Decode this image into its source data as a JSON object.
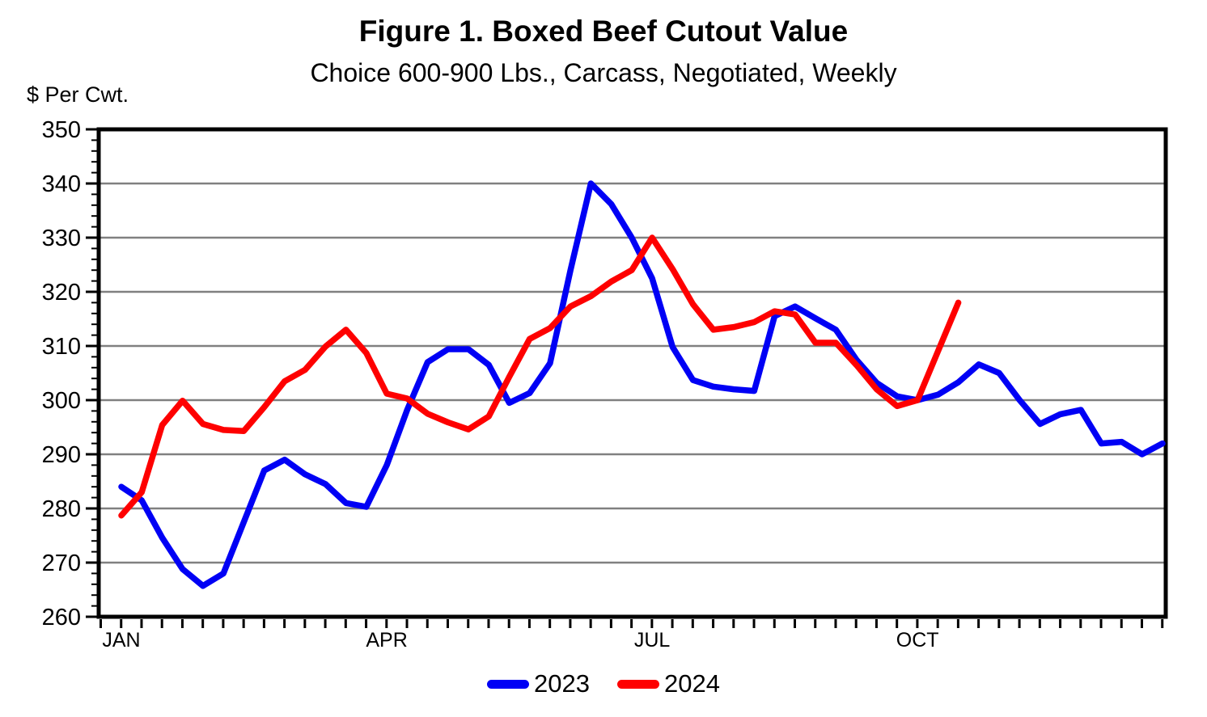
{
  "figure": {
    "title": "Figure 1. Boxed Beef Cutout Value",
    "subtitle": "Choice 600-900 Lbs., Carcass, Negotiated, Weekly",
    "y_axis_unit_label": "$ Per Cwt."
  },
  "colors": {
    "grid": "#808080",
    "axis": "#000000",
    "series_2023": "#0000f5",
    "series_2024": "#fe0000"
  },
  "chart_data": {
    "type": "line",
    "title": "Figure 1. Boxed Beef Cutout Value",
    "subtitle": "Choice 600-900 Lbs., Carcass, Negotiated, Weekly",
    "ylabel": "$ Per Cwt.",
    "x_unit": "week of year",
    "ylim": [
      260,
      350
    ],
    "ytick_step": 10,
    "y_minor_tick_step": 2,
    "weeks_per_year": 52,
    "grid": "horizontal major gridlines only",
    "legend_position": "bottom center",
    "xticklabels": [
      {
        "label": "JAN",
        "week": 1
      },
      {
        "label": "APR",
        "week": 14
      },
      {
        "label": "JUL",
        "week": 27
      },
      {
        "label": "OCT",
        "week": 40
      }
    ],
    "series": [
      {
        "name": "2023",
        "color": "#0000f5",
        "values": [
          284.0,
          281.5,
          274.6,
          268.8,
          265.7,
          268.0,
          277.5,
          287.0,
          289.0,
          286.3,
          284.5,
          281.0,
          280.3,
          288.0,
          298.2,
          307.0,
          309.4,
          309.4,
          306.5,
          299.5,
          301.3,
          306.8,
          324.0,
          340.0,
          336.2,
          330.0,
          322.5,
          309.8,
          303.7,
          302.5,
          302.0,
          301.7,
          315.5,
          317.3,
          315.1,
          313.0,
          307.5,
          303.2,
          300.7,
          300.0,
          301.0,
          303.3,
          306.6,
          305.0,
          300.0,
          295.6,
          297.4,
          298.2,
          292.0,
          292.3,
          290.0,
          292.0
        ]
      },
      {
        "name": "2024",
        "color": "#fe0000",
        "values": [
          278.7,
          283.0,
          295.4,
          299.9,
          295.6,
          294.5,
          294.3,
          298.7,
          303.5,
          305.6,
          309.9,
          313.0,
          308.7,
          301.2,
          300.3,
          297.5,
          295.9,
          294.6,
          297.0,
          304.3,
          311.3,
          313.3,
          317.3,
          319.2,
          321.9,
          324.0,
          330.0,
          324.2,
          317.7,
          313.0,
          313.5,
          314.4,
          316.4,
          315.8,
          310.6,
          310.6,
          306.5,
          302.0,
          298.9,
          300.0,
          309.0,
          318.0
        ]
      }
    ]
  }
}
